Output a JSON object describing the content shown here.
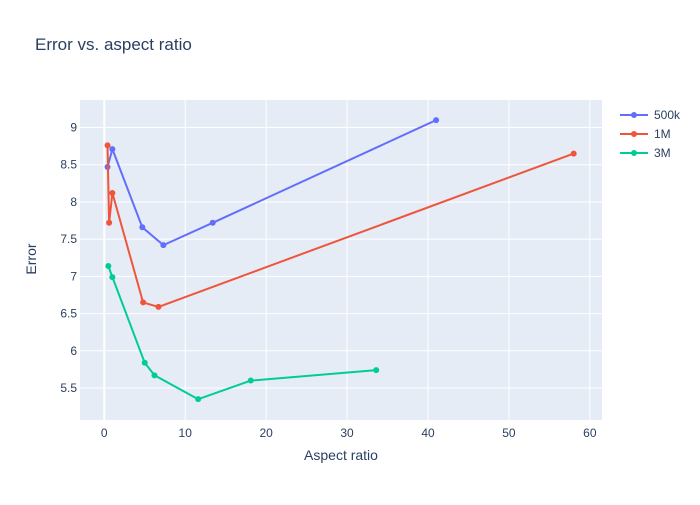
{
  "colors": {
    "plot_bg": "#E5ECF6",
    "grid": "#ffffff",
    "text": "#2a3f5f",
    "title": "#2a3f5f"
  },
  "chart_data": {
    "type": "line",
    "title": "Error vs. aspect ratio",
    "xlabel": "Aspect ratio",
    "ylabel": "Error",
    "xlim": [
      -3,
      61.5
    ],
    "ylim": [
      5.07,
      9.37
    ],
    "xticks": [
      0,
      10,
      20,
      30,
      40,
      50,
      60
    ],
    "yticks": [
      5.5,
      6,
      6.5,
      7,
      7.5,
      8,
      8.5,
      9
    ],
    "grid": true,
    "legend_position": "top-right",
    "series": [
      {
        "name": "500k",
        "color": "#636EFA",
        "x": [
          0.4,
          1.0,
          4.7,
          7.3,
          13.4,
          41.0
        ],
        "y": [
          8.47,
          8.71,
          7.66,
          7.42,
          7.72,
          9.1
        ]
      },
      {
        "name": "1M",
        "color": "#EF553B",
        "x": [
          0.4,
          0.6,
          1.0,
          4.8,
          6.7,
          58.0
        ],
        "y": [
          8.76,
          7.72,
          8.12,
          6.65,
          6.59,
          8.65
        ]
      },
      {
        "name": "3M",
        "color": "#00CC96",
        "x": [
          0.5,
          1.0,
          5.0,
          6.2,
          11.6,
          18.1,
          33.6
        ],
        "y": [
          7.14,
          6.99,
          5.84,
          5.67,
          5.35,
          5.6,
          5.74
        ]
      }
    ]
  }
}
